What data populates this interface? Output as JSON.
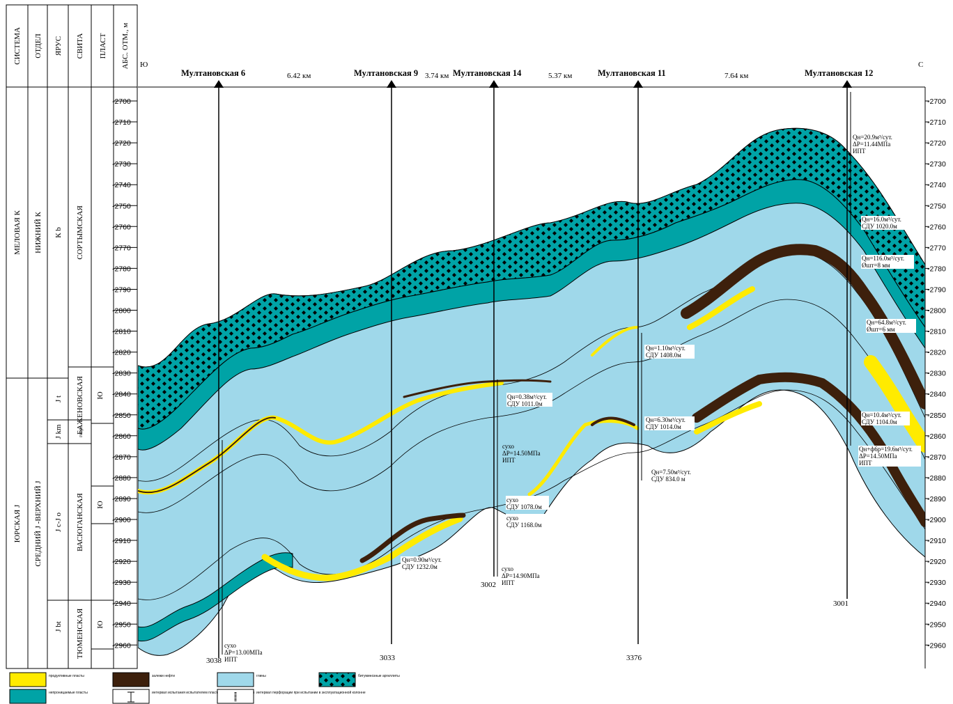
{
  "header": {
    "columns": [
      "СИСТЕМА",
      "ОТДЕЛ",
      "ЯРУС",
      "СВИТА",
      "ПЛАСТ",
      "АБС. ОТМ., м"
    ],
    "side_left": "Ю",
    "side_right": "С"
  },
  "strat": {
    "systems": [
      "МЕЛОВАЯ К",
      "ЮРСКАЯ J"
    ],
    "series": [
      "НИЖНИЙ К",
      "СРЕДНИЙ J -ВЕРХНИЙ J"
    ],
    "stages": [
      "К b",
      "J t",
      "J km",
      "J c-J o",
      "J bt"
    ],
    "suites": [
      "СОРТЫМСКАЯ",
      "БАЖЕНОВСКАЯ",
      "георг",
      "ВАСЮГАНСКАЯ",
      "ТЮМЕНСКАЯ"
    ],
    "beds": [
      "Ю",
      "Ю",
      "Ю"
    ]
  },
  "depth_ticks": [
    "-2700",
    "-2710",
    "-2720",
    "-2730",
    "-2740",
    "-2750",
    "-2760",
    "-2770",
    "-2780",
    "-2790",
    "-2800",
    "-2810",
    "-2820",
    "-2830",
    "-2840",
    "-2850",
    "-2860",
    "-2870",
    "-2880",
    "-2890",
    "-2900",
    "-2910",
    "-2920",
    "-2930",
    "-2940",
    "-2950",
    "-2960"
  ],
  "wells": [
    {
      "name": "Мултановская 6",
      "bottom": "3038"
    },
    {
      "name": "Мултановская 9",
      "bottom": "3033"
    },
    {
      "name": "Мултановская 14",
      "bottom": "3002"
    },
    {
      "name": "Мултановская 11",
      "bottom": "3376"
    },
    {
      "name": "Мултановская 12",
      "bottom": "3001"
    }
  ],
  "distances": [
    "6.42 км",
    "3.74 км",
    "5.37 км",
    "7.64 км"
  ],
  "annotations": {
    "w6": [
      "сухо",
      "ΔP=13.00МПа",
      "ИПТ"
    ],
    "w9": [
      "Qн=0.90м³/сут.",
      "СДУ 1232.0м"
    ],
    "w14a": [
      "Qн=0.38м³/сут.",
      "СДУ 1011.0м"
    ],
    "w14b": [
      "сухо",
      "ΔP=14.50МПа",
      "ИПТ"
    ],
    "w14c": [
      "сухо",
      "СДУ 1078.0м"
    ],
    "w14d": [
      "сухо",
      "СДУ 1168.0м"
    ],
    "w14e": [
      "сухо",
      "ΔP=14.90МПа",
      "ИПТ"
    ],
    "w11a": [
      "Qн=1.10м³/сут.",
      "СДУ 1408.0м"
    ],
    "w11b": [
      "Qн=6.30м³/сут.",
      "СДУ 1014.0м"
    ],
    "w11c": [
      "Qн=7.50м³/сут.",
      "СДУ 834.0 м"
    ],
    "w12a": [
      "Qн=20.9м³/сут.",
      "ΔP=11.44МПа",
      "ИПТ"
    ],
    "w12b": [
      "Qн=16.0м³/сут.",
      "СДУ 1020.0м"
    ],
    "w12c": [
      "Qн=116.0м³/сут.",
      "Øшт=8 мм"
    ],
    "w12d": [
      "Qн=64.8м³/сут.",
      "Øшт=6 мм"
    ],
    "w12e": [
      "Qн=10.4м³/сут.",
      "СДУ 1104.0м"
    ],
    "w12f": [
      "Qн+ф6р=19.6м³/сут.",
      "ΔP=14.50МПа",
      "ИПТ"
    ]
  },
  "legend": [
    {
      "label": "продуктивные пласты",
      "color": "#ffeb00"
    },
    {
      "label": "непроницаемые пласты",
      "color": "#00a3a6"
    },
    {
      "label": "залежи нефти",
      "color": "#3d200c"
    },
    {
      "label": "глины",
      "color": "#9fd8ea"
    },
    {
      "label": "битуминозные аргиллиты",
      "color": "#00a3a6"
    },
    {
      "label": "интервал испытания испытателем пластов в процессе бурения",
      "color": "#000000"
    },
    {
      "label": "интервал перфорации при испытании в эксплуатационной колонне",
      "color": "#000000"
    }
  ],
  "colors": {
    "clay": "#9fd8ea",
    "teal": "#00a3a6",
    "oil": "#3d200c",
    "sand": "#ffeb00"
  }
}
